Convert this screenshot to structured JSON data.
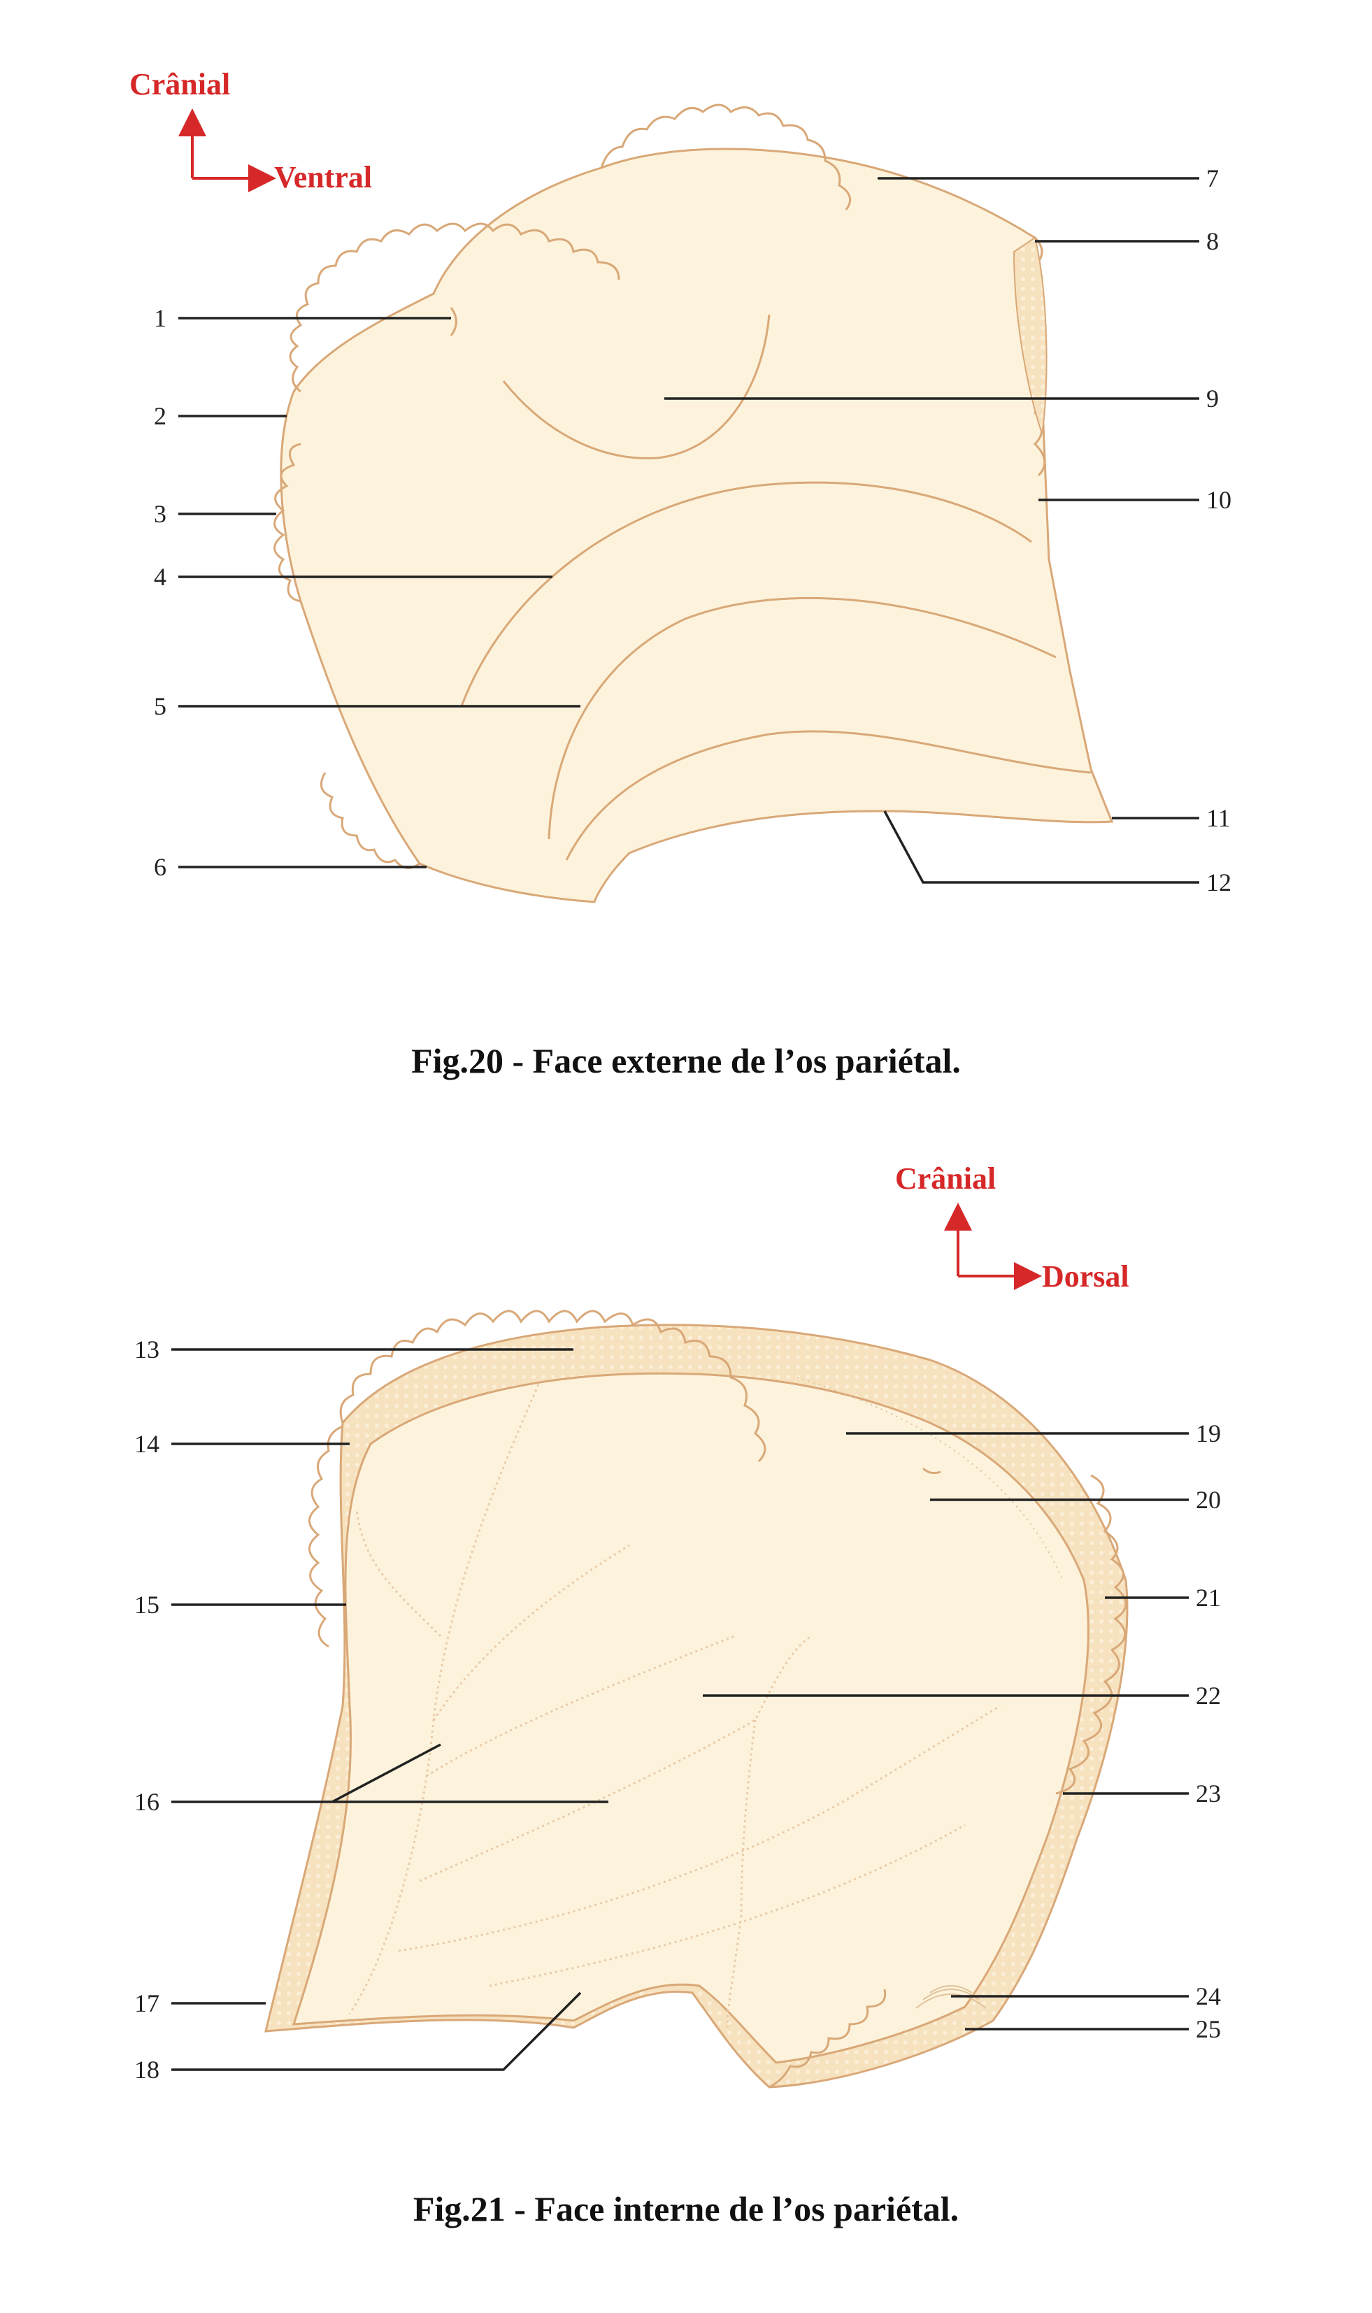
{
  "fig20": {
    "orientation": {
      "up": "Crânial",
      "right": "Ventral"
    },
    "labels": [
      "1",
      "2",
      "3",
      "4",
      "5",
      "6",
      "7",
      "8",
      "9",
      "10",
      "11",
      "12"
    ],
    "caption": "Fig.20 - Face externe de l’os pariétal."
  },
  "fig21": {
    "orientation": {
      "up": "Crânial",
      "right": "Dorsal"
    },
    "labels": [
      "13",
      "14",
      "15",
      "16",
      "17",
      "18",
      "19",
      "20",
      "21",
      "22",
      "23",
      "24",
      "25"
    ],
    "caption": "Fig.21 - Face interne de l’os pariétal."
  },
  "colors": {
    "bone_fill": "#fdf3dc",
    "bone_outline": "#d9a878",
    "orientation": "#d62828",
    "leader": "#222222"
  }
}
